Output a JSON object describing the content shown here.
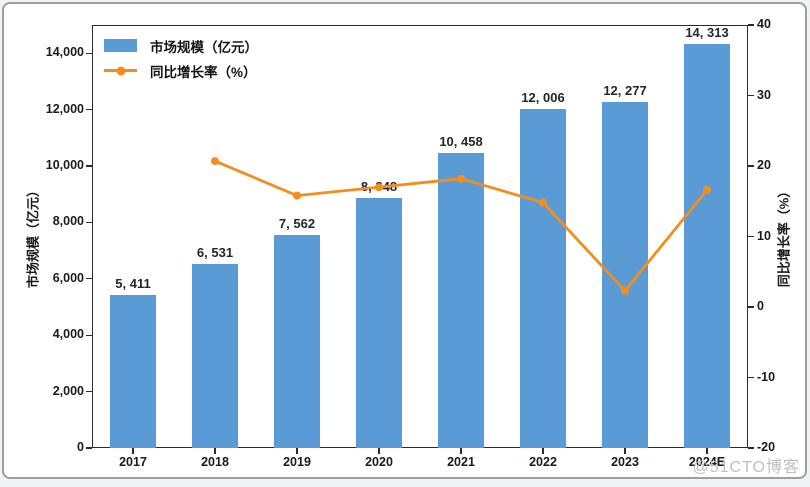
{
  "watermark": "@51CTO博客",
  "chart_data": {
    "type": "bar",
    "title": "",
    "categories": [
      "2017",
      "2018",
      "2019",
      "2020",
      "2021",
      "2022",
      "2023",
      "2024E"
    ],
    "series": [
      {
        "name": "市场规模（亿元）",
        "type": "bar",
        "axis": "left",
        "color": "#5B9BD5",
        "values": [
          5411,
          6531,
          7562,
          8848,
          10458,
          12006,
          12277,
          14313
        ],
        "labels": [
          "5, 411",
          "6, 531",
          "7, 562",
          "8, 848",
          "10, 458",
          "12, 006",
          "12, 277",
          "14, 313"
        ]
      },
      {
        "name": "同比增长率（%）",
        "type": "line",
        "axis": "right",
        "color": "#F28D1E",
        "values": [
          null,
          20.7,
          15.8,
          17.0,
          18.2,
          14.8,
          2.3,
          16.6
        ]
      }
    ],
    "left_axis": {
      "label": "市场规模（亿元）",
      "tick_values": [
        0,
        2000,
        4000,
        6000,
        8000,
        10000,
        12000,
        14000
      ],
      "tick_labels": [
        "0",
        "2,000",
        "4,000",
        "6,000",
        "8,000",
        "10,000",
        "12,000",
        "14,000"
      ],
      "min": 0,
      "max": 15000
    },
    "right_axis": {
      "label": "同比增长率（%）",
      "tick_values": [
        -20,
        -10,
        0,
        10,
        20,
        30,
        40
      ],
      "tick_labels": [
        "-20",
        "-10",
        "0",
        "10",
        "20",
        "30",
        "40"
      ],
      "min": -20,
      "max": 40
    },
    "legend_position": "upper-left",
    "grid": false
  }
}
